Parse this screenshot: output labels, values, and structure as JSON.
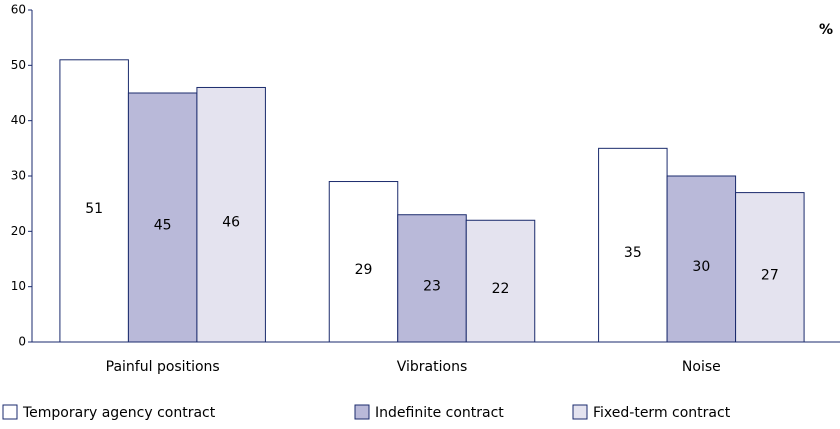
{
  "chart_data": {
    "type": "bar",
    "annotations": [
      "%"
    ],
    "categories": [
      "Painful positions",
      "Vibrations",
      "Noise"
    ],
    "series": [
      {
        "name": "Temporary agency contract",
        "color": "#ffffff",
        "values": [
          51,
          29,
          35
        ]
      },
      {
        "name": "Indefinite contract",
        "color": "#b9b9d9",
        "values": [
          45,
          23,
          30
        ]
      },
      {
        "name": "Fixed-term contract",
        "color": "#e4e3ef",
        "values": [
          46,
          22,
          27
        ]
      }
    ],
    "ylim": [
      0,
      60
    ],
    "yticks": [
      0,
      10,
      20,
      30,
      40,
      50,
      60
    ],
    "grid": false,
    "legend": "bottom"
  }
}
